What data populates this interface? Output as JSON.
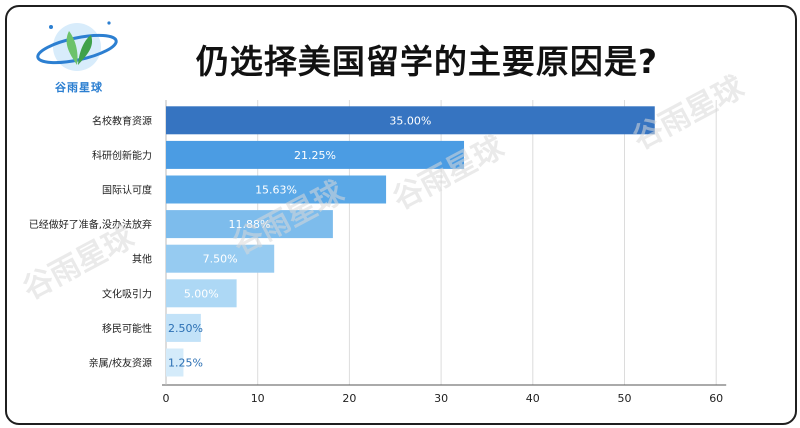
{
  "logo": {
    "text": "谷雨星球"
  },
  "watermark": "谷雨星球",
  "colors": [
    "#3674c1",
    "#4b9ce3",
    "#5aa8e7",
    "#7dbcec",
    "#96cbf1",
    "#add8f5",
    "#c2e2f8",
    "#d4ebfa"
  ],
  "chart_data": {
    "type": "bar",
    "orientation": "horizontal",
    "title": "仍选择美国留学的主要原因是?",
    "categories": [
      "名校教育资源",
      "科研创新能力",
      "国际认可度",
      "已经做好了准备,没办法放弃",
      "其他",
      "文化吸引力",
      "移民可能性",
      "亲属/校友资源"
    ],
    "values": [
      53.3,
      32.5,
      24.0,
      18.2,
      11.8,
      7.7,
      3.8,
      1.9
    ],
    "data_labels": [
      "35.00%",
      "21.25%",
      "15.63%",
      "11.88%",
      "7.50%",
      "5.00%",
      "2.50%",
      "1.25%"
    ],
    "xlim": [
      0,
      60
    ],
    "xticks": [
      "0",
      "10",
      "20",
      "30",
      "40",
      "50",
      "60"
    ],
    "grid": true,
    "legend": "none"
  }
}
